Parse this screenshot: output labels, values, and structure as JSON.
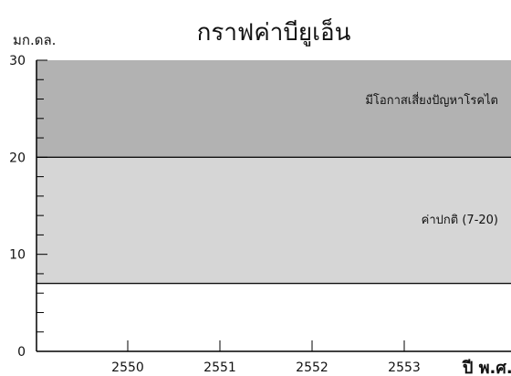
{
  "chart_data": {
    "type": "area",
    "title": "กราฟค่าบียูเอ็น",
    "ylabel": "มก.ดล.",
    "xlabel": "ปี พ.ศ.",
    "categories": [
      "2550",
      "2551",
      "2552",
      "2553"
    ],
    "ylim": [
      0,
      30
    ],
    "yticks": [
      0,
      10,
      20,
      30
    ],
    "grid": false,
    "colors": {
      "high_zone": "#b2b2b2",
      "normal_zone": "#d6d6d6",
      "low_zone": "#ffffff",
      "axis": "#000000",
      "boundary": "#111111"
    },
    "zones": [
      {
        "name": "มีโอกาสเสี่ยงปัญหาโรคไต",
        "from": 20,
        "to": 30,
        "color_key": "high_zone"
      },
      {
        "name": "ค่าปกติ (7-20)",
        "from": 7,
        "to": 20,
        "color_key": "normal_zone"
      }
    ],
    "boundaries": [
      7,
      20
    ]
  }
}
